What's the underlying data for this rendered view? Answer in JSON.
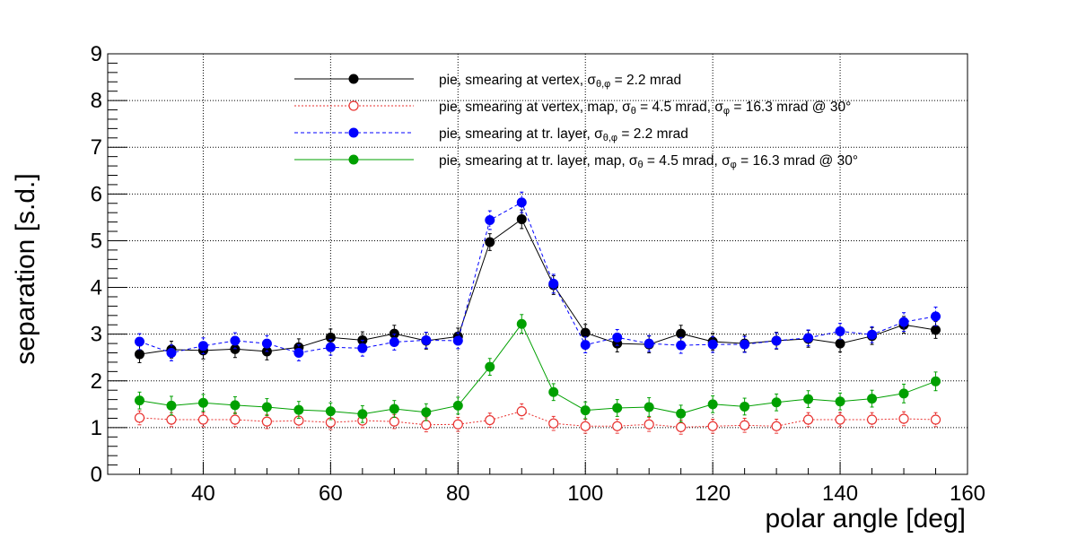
{
  "chart_data": {
    "type": "scatter",
    "title": "",
    "xlabel": "polar angle [deg]",
    "ylabel": "separation [s.d.]",
    "xlim": [
      25,
      160
    ],
    "ylim": [
      0,
      9
    ],
    "xticks": [
      "40",
      "60",
      "80",
      "100",
      "120",
      "140",
      "160"
    ],
    "yticks": [
      "0",
      "1",
      "2",
      "3",
      "4",
      "5",
      "6",
      "7",
      "8",
      "9"
    ],
    "grid": true,
    "legend_position": "top-right",
    "x": [
      30,
      35,
      40,
      45,
      50,
      55,
      60,
      65,
      70,
      75,
      80,
      85,
      90,
      95,
      100,
      105,
      110,
      115,
      120,
      125,
      130,
      135,
      140,
      145,
      150,
      155
    ],
    "series": [
      {
        "name": "pie, smearing at vertex, σθ,φ = 2.2 mrad",
        "legend": {
          "pre": "pie, smearing at vertex, σ",
          "sub1": "θ,φ",
          "mid": " = 2.2 mrad",
          "sub2": "",
          "post": ""
        },
        "color": "#000000",
        "marker": "filled-circle",
        "line": "solid",
        "values": [
          2.57,
          2.67,
          2.65,
          2.68,
          2.63,
          2.72,
          2.93,
          2.87,
          3.01,
          2.86,
          2.95,
          4.97,
          5.46,
          4.05,
          3.03,
          2.8,
          2.78,
          3.01,
          2.84,
          2.8,
          2.86,
          2.9,
          2.8,
          2.96,
          3.2,
          3.09
        ],
        "errors": [
          0.18,
          0.18,
          0.18,
          0.18,
          0.18,
          0.18,
          0.18,
          0.18,
          0.18,
          0.18,
          0.18,
          0.18,
          0.2,
          0.2,
          0.18,
          0.18,
          0.18,
          0.18,
          0.18,
          0.18,
          0.18,
          0.18,
          0.18,
          0.18,
          0.18,
          0.18
        ]
      },
      {
        "name": "pie, smearing at vertex, map, σθ = 4.5 mrad, σφ = 16.3 mrad @ 30°",
        "legend": {
          "pre": "pie, smearing at vertex, map, σ",
          "sub1": "θ",
          "mid": " = 4.5 mrad,  σ",
          "sub2": "φ",
          "post": " = 16.3 mrad @ 30°"
        },
        "color": "#e8312f",
        "marker": "open-circle",
        "line": "dotted",
        "values": [
          1.21,
          1.17,
          1.17,
          1.17,
          1.13,
          1.15,
          1.11,
          1.15,
          1.13,
          1.06,
          1.07,
          1.16,
          1.35,
          1.09,
          1.03,
          1.03,
          1.07,
          1.01,
          1.03,
          1.05,
          1.03,
          1.17,
          1.17,
          1.17,
          1.19,
          1.17
        ],
        "errors": [
          0.15,
          0.15,
          0.15,
          0.15,
          0.15,
          0.15,
          0.15,
          0.15,
          0.15,
          0.15,
          0.15,
          0.15,
          0.16,
          0.15,
          0.15,
          0.15,
          0.15,
          0.15,
          0.15,
          0.15,
          0.15,
          0.15,
          0.15,
          0.15,
          0.15,
          0.15
        ]
      },
      {
        "name": "pie, smearing at tr. layer, σθ,φ = 2.2 mrad",
        "legend": {
          "pre": "pie, smearing at tr. layer, σ",
          "sub1": "θ,φ",
          "mid": " = 2.2 mrad",
          "sub2": "",
          "post": ""
        },
        "color": "#0000ff",
        "marker": "filled-circle",
        "line": "dashed",
        "values": [
          2.84,
          2.6,
          2.75,
          2.86,
          2.8,
          2.6,
          2.72,
          2.7,
          2.83,
          2.87,
          2.86,
          5.44,
          5.82,
          4.08,
          2.77,
          2.93,
          2.8,
          2.76,
          2.78,
          2.78,
          2.86,
          2.92,
          3.06,
          2.99,
          3.26,
          3.38
        ],
        "errors": [
          0.17,
          0.17,
          0.17,
          0.17,
          0.17,
          0.17,
          0.17,
          0.17,
          0.17,
          0.17,
          0.17,
          0.2,
          0.22,
          0.2,
          0.17,
          0.17,
          0.17,
          0.17,
          0.17,
          0.17,
          0.17,
          0.17,
          0.17,
          0.17,
          0.2,
          0.2
        ]
      },
      {
        "name": "pie, smearing at tr. layer, map, σθ = 4.5 mrad, σφ = 16.3 mrad @ 30°",
        "legend": {
          "pre": "pie, smearing at tr. layer, map, σ",
          "sub1": "θ",
          "mid": " = 4.5 mrad,  σ",
          "sub2": "φ",
          "post": " = 16.3 mrad @ 30°"
        },
        "color": "#00a000",
        "marker": "filled-circle",
        "line": "solid",
        "values": [
          1.58,
          1.47,
          1.53,
          1.48,
          1.44,
          1.38,
          1.35,
          1.29,
          1.4,
          1.33,
          1.47,
          2.3,
          3.22,
          1.76,
          1.37,
          1.42,
          1.44,
          1.3,
          1.5,
          1.45,
          1.54,
          1.61,
          1.56,
          1.62,
          1.73,
          1.99
        ],
        "errors": [
          0.18,
          0.2,
          0.18,
          0.18,
          0.18,
          0.18,
          0.18,
          0.18,
          0.18,
          0.18,
          0.18,
          0.18,
          0.2,
          0.18,
          0.18,
          0.18,
          0.2,
          0.18,
          0.18,
          0.18,
          0.18,
          0.18,
          0.18,
          0.18,
          0.2,
          0.2
        ]
      }
    ]
  }
}
